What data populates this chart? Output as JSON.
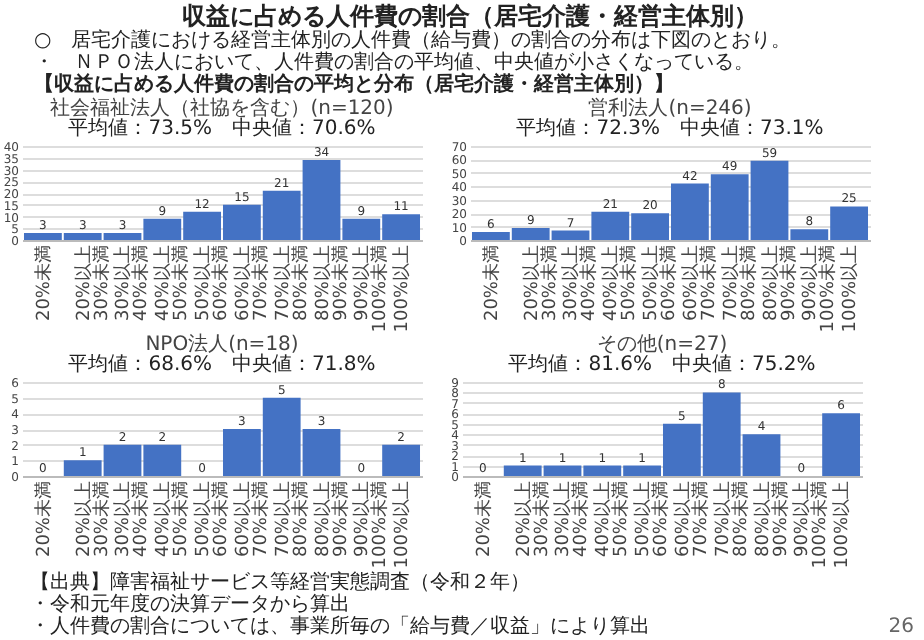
{
  "chart_data": [
    {
      "type": "other",
      "title": "収益に占める人件費の割合（居宅介護・経営主体別）",
      "annotations": [
        "○　居宅介護における経営主体別の人件費（給与費）の割合の分布は下図のとおり。",
        "・　ＮＰＯ法人において、人件費の割合の平均値、中央値が小さくなっている。",
        "【収益に占める人件費の割合の平均と分布（居宅介護・経営主体別）】"
      ]
    },
    {
      "type": "bar",
      "title": "社会福祉法人（社協を含む）(n=120)",
      "categories": [
        "20%未満",
        "20%以上\n30%未満",
        "30%以上\n40%未満",
        "40%以上\n50%未満",
        "50%以上\n60%未満",
        "60%以上\n70%未満",
        "70%以上\n80%未満",
        "80%以上\n90%未満",
        "90%以上\n100%未満",
        "100%以上"
      ],
      "values": [
        3,
        3,
        3,
        9,
        12,
        15,
        21,
        34,
        9,
        11
      ],
      "color": "#4472c4",
      "ylim": [
        0,
        40
      ],
      "yticks": [
        0,
        5,
        10,
        15,
        20,
        25,
        30,
        35,
        40
      ],
      "grid": "y",
      "data_labels": true,
      "annotations": [
        "平均値：73.5%",
        "中央値：70.6%"
      ]
    },
    {
      "type": "bar",
      "title": "営利法人(n=246)",
      "categories": [
        "20%未満",
        "20%以上\n30%未満",
        "30%以上\n40%未満",
        "40%以上\n50%未満",
        "50%以上\n60%未満",
        "60%以上\n70%未満",
        "70%以上\n80%未満",
        "80%以上\n90%未満",
        "90%以上\n100%未満",
        "100%以上"
      ],
      "values": [
        6,
        9,
        7,
        21,
        20,
        42,
        49,
        59,
        8,
        25
      ],
      "color": "#4472c4",
      "ylim": [
        0,
        70
      ],
      "yticks": [
        0,
        10,
        20,
        30,
        40,
        50,
        60,
        70
      ],
      "grid": "y",
      "data_labels": true,
      "annotations": [
        "平均値：72.3%",
        "中央値：73.1%"
      ]
    },
    {
      "type": "bar",
      "title": "NPO法人(n=18)",
      "categories": [
        "20%未満",
        "20%以上\n30%未満",
        "30%以上\n40%未満",
        "40%以上\n50%未満",
        "50%以上\n60%未満",
        "60%以上\n70%未満",
        "70%以上\n80%未満",
        "80%以上\n90%未満",
        "90%以上\n100%未満",
        "100%以上"
      ],
      "values": [
        0,
        1,
        2,
        2,
        0,
        3,
        5,
        3,
        0,
        2
      ],
      "color": "#4472c4",
      "ylim": [
        0,
        6
      ],
      "yticks": [
        0,
        1,
        2,
        3,
        4,
        5,
        6
      ],
      "grid": "y",
      "data_labels": true,
      "annotations": [
        "平均値：68.6%",
        "中央値：71.8%"
      ]
    },
    {
      "type": "bar",
      "title": "その他(n=27)",
      "categories": [
        "20%未満",
        "20%以上\n30%未満",
        "30%以上\n40%未満",
        "40%以上\n50%未満",
        "50%以上\n60%未満",
        "60%以上\n70%未満",
        "70%以上\n80%未満",
        "80%以上\n90%未満",
        "90%以上\n100%未満",
        "100%以上"
      ],
      "values": [
        0,
        1,
        1,
        1,
        1,
        5,
        8,
        4,
        0,
        6
      ],
      "color": "#4472c4",
      "ylim": [
        0,
        9
      ],
      "yticks": [
        0,
        1,
        2,
        3,
        4,
        5,
        6,
        7,
        8,
        9
      ],
      "grid": "y",
      "data_labels": true,
      "annotations": [
        "平均値：81.6%",
        "中央値：75.2%"
      ]
    },
    {
      "type": "other",
      "annotations": [
        "【出典】障害福祉サービス等経営実態調査（令和２年）",
        "・令和元年度の決算データから算出",
        "・人件費の割合については、事業所毎の「給与費／収益」により算出",
        "26"
      ]
    }
  ]
}
